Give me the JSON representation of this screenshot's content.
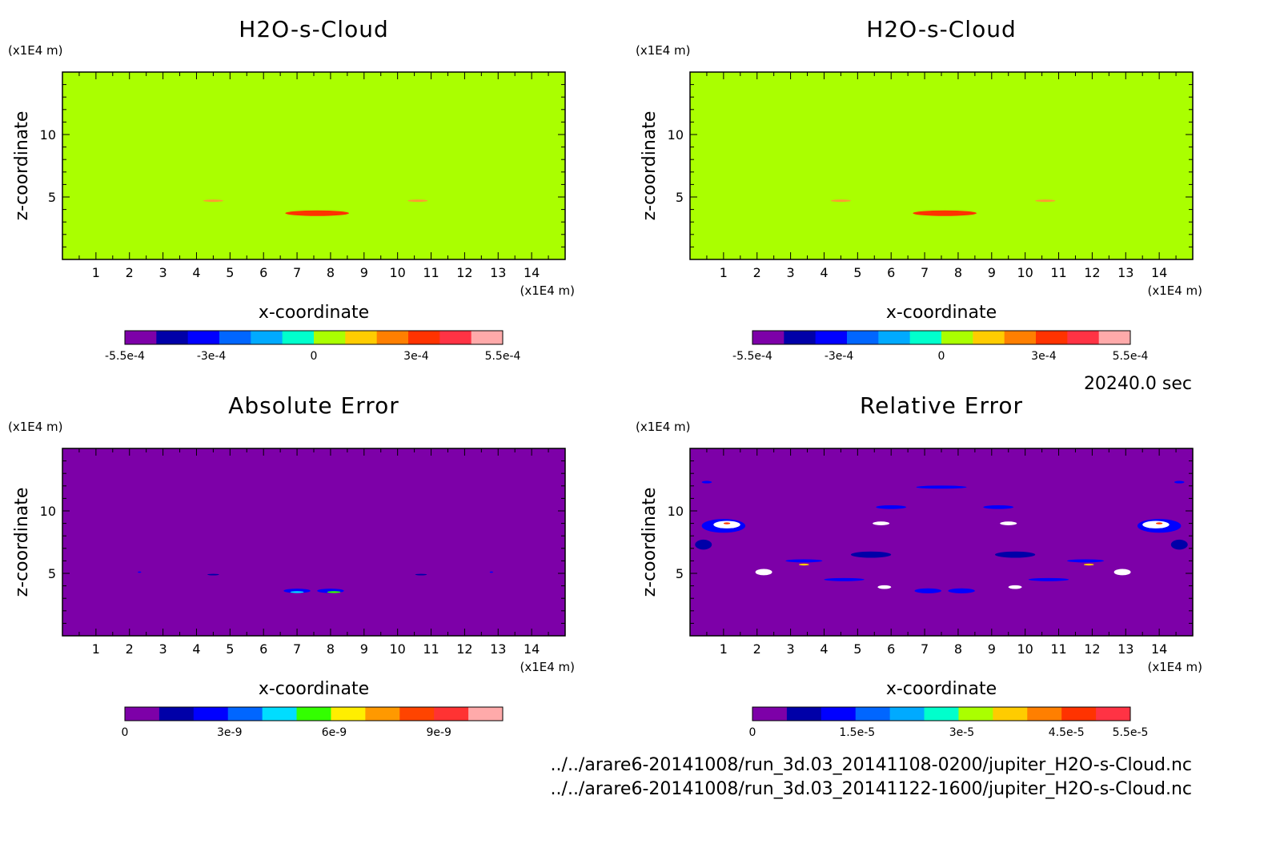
{
  "time_label": "20240.0 sec",
  "file_paths": [
    "../../arare6-20141008/run_3d.03_20141108-0200/jupiter_H2O-s-Cloud.nc",
    "../../arare6-20141008/run_3d.03_20141122-1600/jupiter_H2O-s-Cloud.nc"
  ],
  "colors": {
    "background_field": "#aaff00",
    "background_error": "#7d00a8",
    "cloud_core": "#ff3300",
    "cloud_edge": "#ff7a1a"
  },
  "chart_data": [
    {
      "type": "heatmap",
      "title": "H2O-s-Cloud",
      "xlabel": "x-coordinate",
      "ylabel": "z-coordinate",
      "x_unit": "(x1E4 m)",
      "y_unit": "(x1E4 m)",
      "xlim": [
        0,
        15
      ],
      "ylim": [
        0,
        15
      ],
      "x_ticks": [
        "1",
        "2",
        "3",
        "4",
        "5",
        "6",
        "7",
        "8",
        "9",
        "10",
        "11",
        "12",
        "13",
        "14"
      ],
      "y_ticks": [
        "5",
        "10"
      ],
      "colorbar": {
        "ticks": [
          {
            "label": "-5.5e-4",
            "pos": 0
          },
          {
            "label": "-3e-4",
            "pos": 0.229
          },
          {
            "label": "0",
            "pos": 0.5
          },
          {
            "label": "3e-4",
            "pos": 0.771
          },
          {
            "label": "5.5e-4",
            "pos": 1
          }
        ],
        "colors": [
          "#7d00a8",
          "#0000a8",
          "#0000ff",
          "#0066ff",
          "#00aaff",
          "#00ffcc",
          "#aaff00",
          "#ffcc00",
          "#ff7f00",
          "#ff3300",
          "#ff3344",
          "#ffaaaa"
        ]
      },
      "features": [
        {
          "kind": "cloud",
          "x": 7.6,
          "z": 3.7,
          "w": 1.9,
          "h": 0.45,
          "color": "#ff3300"
        },
        {
          "kind": "cloud",
          "x": 4.5,
          "z": 4.7,
          "w": 0.6,
          "h": 0.18,
          "color": "#ff9933"
        },
        {
          "kind": "cloud",
          "x": 10.6,
          "z": 4.7,
          "w": 0.6,
          "h": 0.18,
          "color": "#ff9933"
        }
      ]
    },
    {
      "type": "heatmap",
      "title": "H2O-s-Cloud",
      "xlabel": "x-coordinate",
      "ylabel": "z-coordinate",
      "x_unit": "(x1E4 m)",
      "y_unit": "(x1E4 m)",
      "xlim": [
        0,
        15
      ],
      "ylim": [
        0,
        15
      ],
      "x_ticks": [
        "1",
        "2",
        "3",
        "4",
        "5",
        "6",
        "7",
        "8",
        "9",
        "10",
        "11",
        "12",
        "13",
        "14"
      ],
      "y_ticks": [
        "5",
        "10"
      ],
      "colorbar": {
        "ticks": [
          {
            "label": "-5.5e-4",
            "pos": 0
          },
          {
            "label": "-3e-4",
            "pos": 0.229
          },
          {
            "label": "0",
            "pos": 0.5
          },
          {
            "label": "3e-4",
            "pos": 0.771
          },
          {
            "label": "5.5e-4",
            "pos": 1
          }
        ],
        "colors": [
          "#7d00a8",
          "#0000a8",
          "#0000ff",
          "#0066ff",
          "#00aaff",
          "#00ffcc",
          "#aaff00",
          "#ffcc00",
          "#ff7f00",
          "#ff3300",
          "#ff3344",
          "#ffaaaa"
        ]
      },
      "features": [
        {
          "kind": "cloud",
          "x": 7.6,
          "z": 3.7,
          "w": 1.9,
          "h": 0.45,
          "color": "#ff3300"
        },
        {
          "kind": "cloud",
          "x": 4.5,
          "z": 4.7,
          "w": 0.6,
          "h": 0.18,
          "color": "#ff9933"
        },
        {
          "kind": "cloud",
          "x": 10.6,
          "z": 4.7,
          "w": 0.6,
          "h": 0.18,
          "color": "#ff9933"
        }
      ]
    },
    {
      "type": "heatmap",
      "title": "Absolute Error",
      "xlabel": "x-coordinate",
      "ylabel": "z-coordinate",
      "x_unit": "(x1E4 m)",
      "y_unit": "(x1E4 m)",
      "xlim": [
        0,
        15
      ],
      "ylim": [
        0,
        15
      ],
      "x_ticks": [
        "1",
        "2",
        "3",
        "4",
        "5",
        "6",
        "7",
        "8",
        "9",
        "10",
        "11",
        "12",
        "13",
        "14"
      ],
      "y_ticks": [
        "5",
        "10"
      ],
      "colorbar": {
        "ticks": [
          {
            "label": "0",
            "pos": 0
          },
          {
            "label": "3e-9",
            "pos": 0.277
          },
          {
            "label": "6e-9",
            "pos": 0.554
          },
          {
            "label": "9e-9",
            "pos": 0.831
          }
        ],
        "colors": [
          "#7d00a8",
          "#0000a8",
          "#0000ff",
          "#0066ff",
          "#00ddff",
          "#33ff00",
          "#ffee00",
          "#ff9900",
          "#ff4400",
          "#ff3333",
          "#ffaaaa"
        ]
      },
      "features": [
        {
          "kind": "blob",
          "x": 7.0,
          "z": 3.6,
          "w": 0.8,
          "h": 0.35,
          "color": "#0000ff"
        },
        {
          "kind": "blob",
          "x": 8.0,
          "z": 3.6,
          "w": 0.8,
          "h": 0.35,
          "color": "#0000ff"
        },
        {
          "kind": "blob",
          "x": 7.0,
          "z": 3.5,
          "w": 0.4,
          "h": 0.15,
          "color": "#00ddff"
        },
        {
          "kind": "blob",
          "x": 8.1,
          "z": 3.5,
          "w": 0.4,
          "h": 0.15,
          "color": "#33ff00"
        },
        {
          "kind": "blob",
          "x": 4.5,
          "z": 4.9,
          "w": 0.35,
          "h": 0.12,
          "color": "#0000a8"
        },
        {
          "kind": "blob",
          "x": 10.7,
          "z": 4.9,
          "w": 0.35,
          "h": 0.12,
          "color": "#0000a8"
        },
        {
          "kind": "blob",
          "x": 2.3,
          "z": 5.1,
          "w": 0.1,
          "h": 0.1,
          "color": "#0000ff"
        },
        {
          "kind": "blob",
          "x": 12.8,
          "z": 5.1,
          "w": 0.1,
          "h": 0.1,
          "color": "#0000ff"
        }
      ]
    },
    {
      "type": "heatmap",
      "title": "Relative Error",
      "xlabel": "x-coordinate",
      "ylabel": "z-coordinate",
      "x_unit": "(x1E4 m)",
      "y_unit": "(x1E4 m)",
      "xlim": [
        0,
        15
      ],
      "ylim": [
        0,
        15
      ],
      "x_ticks": [
        "1",
        "2",
        "3",
        "4",
        "5",
        "6",
        "7",
        "8",
        "9",
        "10",
        "11",
        "12",
        "13",
        "14"
      ],
      "y_ticks": [
        "5",
        "10"
      ],
      "colorbar": {
        "ticks": [
          {
            "label": "0",
            "pos": 0
          },
          {
            "label": "1.5e-5",
            "pos": 0.277
          },
          {
            "label": "3e-5",
            "pos": 0.554
          },
          {
            "label": "4.5e-5",
            "pos": 0.831
          },
          {
            "label": "5.5e-5",
            "pos": 1
          }
        ],
        "colors": [
          "#7d00a8",
          "#0000a8",
          "#0000ff",
          "#0066ff",
          "#00aaff",
          "#00ffcc",
          "#aaff00",
          "#ffcc00",
          "#ff7f00",
          "#ff3300",
          "#ff3344"
        ]
      },
      "features": [
        {
          "kind": "blob",
          "x": 1.0,
          "z": 8.8,
          "w": 1.3,
          "h": 1.1,
          "color": "#0000ff"
        },
        {
          "kind": "blob",
          "x": 1.1,
          "z": 8.9,
          "w": 0.8,
          "h": 0.6,
          "color": "#ffffff"
        },
        {
          "kind": "blob",
          "x": 14.0,
          "z": 8.8,
          "w": 1.3,
          "h": 1.1,
          "color": "#0000ff"
        },
        {
          "kind": "blob",
          "x": 13.9,
          "z": 8.9,
          "w": 0.8,
          "h": 0.6,
          "color": "#ffffff"
        },
        {
          "kind": "blob",
          "x": 0.4,
          "z": 7.3,
          "w": 0.5,
          "h": 0.8,
          "color": "#0000a8"
        },
        {
          "kind": "blob",
          "x": 14.6,
          "z": 7.3,
          "w": 0.5,
          "h": 0.8,
          "color": "#0000a8"
        },
        {
          "kind": "blob",
          "x": 5.4,
          "z": 6.5,
          "w": 1.2,
          "h": 0.5,
          "color": "#0000a8"
        },
        {
          "kind": "blob",
          "x": 9.7,
          "z": 6.5,
          "w": 1.2,
          "h": 0.5,
          "color": "#0000a8"
        },
        {
          "kind": "blob",
          "x": 7.5,
          "z": 11.9,
          "w": 1.5,
          "h": 0.25,
          "color": "#0000ff"
        },
        {
          "kind": "blob",
          "x": 6.0,
          "z": 10.3,
          "w": 0.9,
          "h": 0.3,
          "color": "#0000ff"
        },
        {
          "kind": "blob",
          "x": 9.2,
          "z": 10.3,
          "w": 0.9,
          "h": 0.3,
          "color": "#0000ff"
        },
        {
          "kind": "blob",
          "x": 5.7,
          "z": 9.0,
          "w": 0.5,
          "h": 0.3,
          "color": "#ffffff"
        },
        {
          "kind": "blob",
          "x": 9.5,
          "z": 9.0,
          "w": 0.5,
          "h": 0.3,
          "color": "#ffffff"
        },
        {
          "kind": "blob",
          "x": 2.2,
          "z": 5.1,
          "w": 0.5,
          "h": 0.5,
          "color": "#ffffff"
        },
        {
          "kind": "blob",
          "x": 12.9,
          "z": 5.1,
          "w": 0.5,
          "h": 0.5,
          "color": "#ffffff"
        },
        {
          "kind": "blob",
          "x": 3.4,
          "z": 6.0,
          "w": 1.1,
          "h": 0.25,
          "color": "#0000ff"
        },
        {
          "kind": "blob",
          "x": 11.8,
          "z": 6.0,
          "w": 1.1,
          "h": 0.25,
          "color": "#0000ff"
        },
        {
          "kind": "blob",
          "x": 4.6,
          "z": 4.5,
          "w": 1.2,
          "h": 0.25,
          "color": "#0000ff"
        },
        {
          "kind": "blob",
          "x": 10.7,
          "z": 4.5,
          "w": 1.2,
          "h": 0.25,
          "color": "#0000ff"
        },
        {
          "kind": "blob",
          "x": 7.1,
          "z": 3.6,
          "w": 0.8,
          "h": 0.4,
          "color": "#0000ff"
        },
        {
          "kind": "blob",
          "x": 8.1,
          "z": 3.6,
          "w": 0.8,
          "h": 0.4,
          "color": "#0000ff"
        },
        {
          "kind": "blob",
          "x": 5.8,
          "z": 3.9,
          "w": 0.4,
          "h": 0.3,
          "color": "#ffffff"
        },
        {
          "kind": "blob",
          "x": 9.7,
          "z": 3.9,
          "w": 0.4,
          "h": 0.3,
          "color": "#ffffff"
        },
        {
          "kind": "blob",
          "x": 3.4,
          "z": 5.7,
          "w": 0.3,
          "h": 0.15,
          "color": "#ffcc00"
        },
        {
          "kind": "blob",
          "x": 11.9,
          "z": 5.7,
          "w": 0.3,
          "h": 0.15,
          "color": "#ffcc00"
        },
        {
          "kind": "blob",
          "x": 1.1,
          "z": 9.0,
          "w": 0.2,
          "h": 0.15,
          "color": "#ff3300"
        },
        {
          "kind": "blob",
          "x": 14.0,
          "z": 9.0,
          "w": 0.2,
          "h": 0.15,
          "color": "#ff3300"
        },
        {
          "kind": "blob",
          "x": 0.5,
          "z": 12.3,
          "w": 0.3,
          "h": 0.2,
          "color": "#0000ff"
        },
        {
          "kind": "blob",
          "x": 14.6,
          "z": 12.3,
          "w": 0.3,
          "h": 0.2,
          "color": "#0000ff"
        }
      ]
    }
  ]
}
